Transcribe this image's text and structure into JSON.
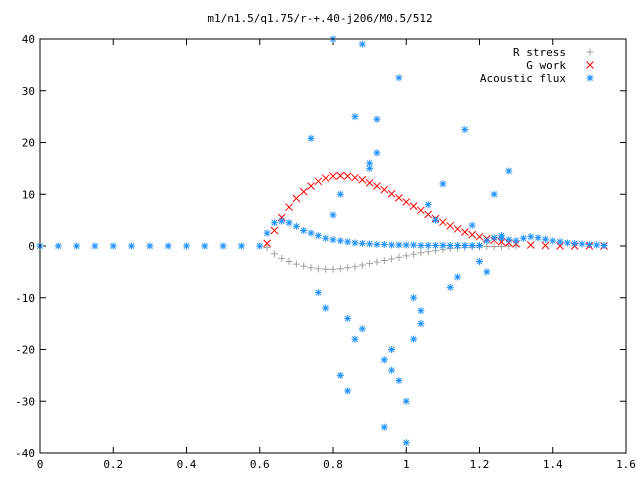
{
  "chart_data": {
    "type": "scatter",
    "title": "m1/n1.5/q1.75/r-+.40-j206/M0.5/512",
    "xlabel": "",
    "ylabel": "",
    "xlim": [
      0,
      1.6
    ],
    "ylim": [
      -40,
      40
    ],
    "xticks": [
      "0",
      "0.2",
      "0.4",
      "0.6",
      "0.8",
      "1",
      "1.2",
      "1.4",
      "1.6"
    ],
    "yticks": [
      "-40",
      "-30",
      "-20",
      "-10",
      "0",
      "10",
      "20",
      "30",
      "40"
    ],
    "grid": false,
    "legend_position": "top-right",
    "series": [
      {
        "name": "R stress",
        "marker": "plus",
        "color": "#a0a0a0",
        "x": [
          0.62,
          0.64,
          0.66,
          0.68,
          0.7,
          0.72,
          0.74,
          0.76,
          0.78,
          0.8,
          0.82,
          0.84,
          0.86,
          0.88,
          0.9,
          0.92,
          0.94,
          0.96,
          0.98,
          1.0,
          1.02,
          1.04,
          1.06,
          1.08,
          1.1,
          1.12,
          1.14,
          1.16,
          1.18,
          1.2,
          1.22,
          1.24,
          1.26,
          1.28,
          1.3
        ],
        "y": [
          -0.3,
          -1.5,
          -2.4,
          -3.0,
          -3.5,
          -3.9,
          -4.2,
          -4.4,
          -4.5,
          -4.5,
          -4.4,
          -4.2,
          -4.0,
          -3.7,
          -3.4,
          -3.1,
          -2.8,
          -2.5,
          -2.2,
          -1.9,
          -1.6,
          -1.3,
          -1.1,
          -0.9,
          -0.7,
          -0.5,
          -0.4,
          -0.3,
          -0.2,
          -0.2,
          -0.1,
          -0.1,
          -0.1,
          0.0,
          0.0
        ]
      },
      {
        "name": "G work",
        "marker": "cross",
        "color": "#ff0000",
        "x": [
          0.62,
          0.64,
          0.66,
          0.68,
          0.7,
          0.72,
          0.74,
          0.76,
          0.78,
          0.8,
          0.82,
          0.84,
          0.86,
          0.88,
          0.9,
          0.92,
          0.94,
          0.96,
          0.98,
          1.0,
          1.02,
          1.04,
          1.06,
          1.08,
          1.1,
          1.12,
          1.14,
          1.16,
          1.18,
          1.2,
          1.22,
          1.24,
          1.26,
          1.28,
          1.3,
          1.34,
          1.38,
          1.42,
          1.46,
          1.5,
          1.54
        ],
        "y": [
          0.5,
          3.0,
          5.5,
          7.5,
          9.2,
          10.5,
          11.6,
          12.5,
          13.1,
          13.5,
          13.6,
          13.5,
          13.2,
          12.8,
          12.2,
          11.6,
          10.9,
          10.1,
          9.3,
          8.5,
          7.7,
          6.9,
          6.1,
          5.3,
          4.6,
          3.9,
          3.3,
          2.7,
          2.2,
          1.8,
          1.4,
          1.1,
          0.8,
          0.6,
          0.4,
          0.2,
          0.1,
          0.0,
          0.0,
          0.0,
          0.0
        ]
      },
      {
        "name": "Acoustic flux",
        "marker": "star",
        "color": "#1e90ff",
        "x": [
          0.0,
          0.05,
          0.1,
          0.15,
          0.2,
          0.25,
          0.3,
          0.35,
          0.4,
          0.45,
          0.5,
          0.55,
          0.6,
          0.62,
          0.64,
          0.66,
          0.68,
          0.7,
          0.72,
          0.74,
          0.76,
          0.78,
          0.8,
          0.82,
          0.84,
          0.86,
          0.88,
          0.9,
          0.92,
          0.94,
          0.96,
          0.98,
          1.0,
          1.02,
          1.04,
          1.06,
          1.08,
          1.1,
          1.12,
          1.14,
          1.16,
          1.18,
          1.2,
          1.22,
          1.24,
          1.26,
          1.28,
          1.3,
          1.32,
          1.34,
          1.36,
          1.38,
          1.4,
          1.42,
          1.44,
          1.46,
          1.48,
          1.5,
          1.52,
          1.54,
          0.74,
          0.8,
          0.82,
          0.86,
          0.94,
          0.78,
          0.84,
          0.9,
          0.96,
          1.0,
          1.04,
          1.1,
          1.16,
          1.22,
          1.28,
          0.76,
          0.88,
          0.92,
          0.98,
          1.02,
          1.06,
          1.12,
          1.18,
          1.24,
          0.8,
          0.86,
          0.9,
          0.94,
          1.0,
          1.04,
          1.08,
          1.14,
          1.2,
          1.26,
          0.84,
          0.92,
          0.98,
          0.82,
          0.88,
          0.96,
          1.02
        ],
        "y": [
          0,
          0,
          0,
          0,
          0,
          0,
          0,
          0,
          0,
          0,
          0,
          0,
          0,
          2.5,
          4.5,
          4.8,
          4.5,
          3.8,
          3.0,
          2.5,
          2.0,
          1.5,
          1.2,
          1.0,
          0.8,
          0.6,
          0.5,
          0.4,
          0.3,
          0.3,
          0.2,
          0.2,
          0.2,
          0.2,
          0.1,
          0.1,
          0.1,
          0.1,
          0.1,
          0.1,
          0.1,
          0.1,
          0.1,
          1.0,
          1.6,
          1.5,
          1.2,
          1.0,
          1.5,
          1.8,
          1.6,
          1.3,
          1.0,
          0.8,
          0.6,
          0.5,
          0.4,
          0.3,
          0.2,
          0.1,
          20.8,
          40.0,
          -25.0,
          25.0,
          -35.0,
          -12.0,
          -28.0,
          15.0,
          -20.0,
          -38.0,
          -15.0,
          12.0,
          22.5,
          -5.0,
          14.5,
          -9.0,
          39.0,
          24.5,
          32.5,
          -10.0,
          8.0,
          -8.0,
          4.0,
          10.0,
          6.0,
          -18.0,
          16.0,
          -22.0,
          -30.0,
          -12.5,
          5.0,
          -6.0,
          -3.0,
          2.0,
          -14.0,
          18.0,
          -26.0,
          10.0,
          -16.0,
          -24.0,
          -18.0
        ]
      }
    ]
  }
}
